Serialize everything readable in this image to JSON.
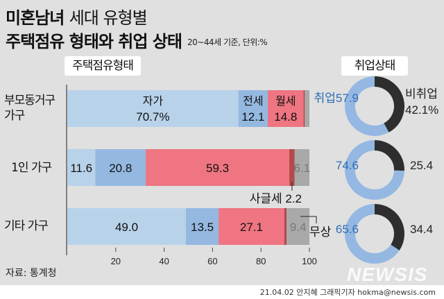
{
  "header": {
    "title_bold": "미혼남녀",
    "title_light": "세대 유형별",
    "title2": "주택점유 형태와 취업 상태",
    "note": "20~44세 기준, 단위:%"
  },
  "sections": {
    "housing": "주택점유형태",
    "employment": "취업상태"
  },
  "rows": [
    {
      "label_line1": "부모동거구",
      "label_line2": "가구"
    },
    {
      "label_line1": "1인 가구",
      "label_line2": ""
    },
    {
      "label_line1": "기타 가구",
      "label_line2": ""
    }
  ],
  "colors": {
    "자가": "#b8d2ea",
    "전세": "#94b8e0",
    "월세": "#ee7581",
    "사글세": "#b24a4c",
    "무상": "#a9a9a9",
    "employed": "#94b8e2",
    "unemployed": "#2e2e2e",
    "employed_text": "#2f6db5",
    "background": "#e0e0e0"
  },
  "chart_data": [
    {
      "type": "bar",
      "orientation": "horizontal-stacked",
      "categories": [
        "부모동거구 가구",
        "1인 가구",
        "기타 가구"
      ],
      "series": [
        {
          "name": "자가",
          "values": [
            70.7,
            11.6,
            49.0
          ]
        },
        {
          "name": "전세",
          "values": [
            12.1,
            20.8,
            13.5
          ]
        },
        {
          "name": "월세",
          "values": [
            14.8,
            59.3,
            27.1
          ]
        },
        {
          "name": "사글세",
          "values": [
            0.5,
            2.2,
            1.0
          ]
        },
        {
          "name": "무상",
          "values": [
            1.9,
            6.1,
            9.4
          ]
        }
      ],
      "labels": [
        [
          "자가|70.7%",
          "전세|12.1",
          "월세|14.8",
          "",
          ""
        ],
        [
          "11.6",
          "20.8",
          "59.3",
          "",
          "6.1"
        ],
        [
          "49.0",
          "13.5",
          "27.1",
          "",
          "9.4"
        ]
      ],
      "callouts": {
        "sageulse": "사글세 2.2",
        "musang": "무상"
      },
      "xlim": [
        0,
        100
      ],
      "xticks": [
        "20",
        "40",
        "60",
        "80",
        "100"
      ]
    },
    {
      "type": "pie",
      "donut": true,
      "categories": [
        "부모동거구 가구",
        "1인 가구",
        "기타 가구"
      ],
      "series": [
        {
          "name": "취업",
          "values": [
            57.9,
            74.6,
            65.6
          ]
        },
        {
          "name": "비취업",
          "values": [
            42.1,
            25.4,
            34.4
          ]
        }
      ],
      "labels": [
        {
          "employed": "취업57.9",
          "unemployed_name": "비취업",
          "unemployed": "42.1%"
        },
        {
          "employed": "74.6",
          "unemployed_name": "",
          "unemployed": "25.4"
        },
        {
          "employed": "65.6",
          "unemployed_name": "",
          "unemployed": "34.4"
        }
      ]
    }
  ],
  "footer": {
    "source": "자료: 통계청",
    "credit": "21.04.02 안지혜 그래픽기자 hokma@newsis.com",
    "logo": "NEWSIS"
  }
}
